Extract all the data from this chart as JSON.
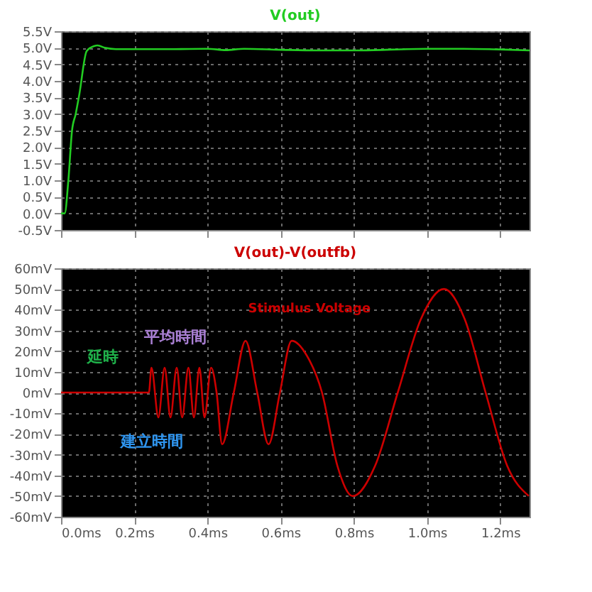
{
  "chart_data": [
    {
      "type": "line",
      "x": [
        0,
        0.01,
        0.02,
        0.03,
        0.04,
        0.05,
        0.07,
        0.09,
        0.1,
        0.12,
        0.15,
        0.2,
        0.3,
        0.4,
        0.45,
        0.5,
        0.6,
        0.7,
        0.8,
        1.0,
        1.1,
        1.2,
        1.28
      ],
      "series": [
        {
          "name": "V(out)",
          "color": "#22cc22",
          "values": [
            0,
            0,
            1.0,
            2.5,
            3.0,
            3.6,
            4.9,
            5.05,
            5.07,
            5.0,
            4.96,
            4.96,
            4.96,
            4.97,
            4.93,
            4.97,
            4.94,
            4.92,
            4.92,
            4.97,
            4.97,
            4.95,
            4.92
          ]
        }
      ],
      "xlim": [
        0,
        1.28
      ],
      "xticks": [
        {
          "value": 0,
          "label": null
        },
        {
          "value": 0.2,
          "label": null
        },
        {
          "value": 0.4,
          "label": null
        },
        {
          "value": 0.6,
          "label": null
        },
        {
          "value": 0.8,
          "label": null
        },
        {
          "value": 1.0,
          "label": null
        },
        {
          "value": 1.2,
          "label": null
        }
      ],
      "ylim": [
        -0.5,
        5.5
      ],
      "yticks": [
        {
          "value": -0.5,
          "label": "-0.5V"
        },
        {
          "value": 0,
          "label": "0.0V"
        },
        {
          "value": 0.5,
          "label": "0.5V"
        },
        {
          "value": 1,
          "label": "1.0V"
        },
        {
          "value": 1.5,
          "label": "1.5V"
        },
        {
          "value": 2,
          "label": "2.0V"
        },
        {
          "value": 2.5,
          "label": "2.5V"
        },
        {
          "value": 3,
          "label": "3.0V"
        },
        {
          "value": 3.5,
          "label": "3.5V"
        },
        {
          "value": 4,
          "label": "4.0V"
        },
        {
          "value": 4.5,
          "label": "4.5V"
        },
        {
          "value": 5,
          "label": "5.0V"
        },
        {
          "value": 5.5,
          "label": "5.5V"
        }
      ],
      "grid": true,
      "tick_labels": "y",
      "line_style": "solid",
      "marker": "none",
      "legend": false
    },
    {
      "type": "line",
      "x": [
        0,
        0.24,
        0.247,
        0.266,
        0.283,
        0.299,
        0.316,
        0.331,
        0.348,
        0.363,
        0.378,
        0.392,
        0.41,
        0.425,
        0.44,
        0.472,
        0.504,
        0.536,
        0.567,
        0.598,
        0.63,
        0.672,
        0.713,
        0.755,
        0.797,
        0.858,
        0.92,
        0.983,
        1.046,
        1.103,
        1.16,
        1.219,
        1.278
      ],
      "series": [
        {
          "name": "V(out)-V(outfb)",
          "color": "#cc0000",
          "values": [
            0,
            0,
            12,
            -12,
            12,
            -12,
            12,
            -12,
            12,
            -12,
            12,
            -12,
            12,
            0,
            -25,
            0,
            25,
            0,
            -25,
            0,
            25,
            17.7,
            0,
            -35.4,
            -50,
            -35.4,
            0,
            35.4,
            50,
            35.4,
            0,
            -35.4,
            -50
          ]
        }
      ],
      "xlim": [
        0,
        1.28
      ],
      "xticks": [
        {
          "value": 0,
          "label": "0.0ms"
        },
        {
          "value": 0.2,
          "label": "0.2ms"
        },
        {
          "value": 0.4,
          "label": "0.4ms"
        },
        {
          "value": 0.6,
          "label": "0.6ms"
        },
        {
          "value": 0.8,
          "label": "0.8ms"
        },
        {
          "value": 1.0,
          "label": "1.0ms"
        },
        {
          "value": 1.2,
          "label": "1.2ms"
        }
      ],
      "ylim": [
        -60,
        60
      ],
      "yticks": [
        {
          "value": -60,
          "label": "-60mV"
        },
        {
          "value": -50,
          "label": "-50mV"
        },
        {
          "value": -40,
          "label": "-40mV"
        },
        {
          "value": -30,
          "label": "-30mV"
        },
        {
          "value": -20,
          "label": "-20mV"
        },
        {
          "value": -10,
          "label": "-10mV"
        },
        {
          "value": 0,
          "label": "0mV"
        },
        {
          "value": 10,
          "label": "10mV"
        },
        {
          "value": 20,
          "label": "20mV"
        },
        {
          "value": 30,
          "label": "30mV"
        },
        {
          "value": 40,
          "label": "40mV"
        },
        {
          "value": 50,
          "label": "50mV"
        },
        {
          "value": 60,
          "label": "60mV"
        }
      ],
      "annotations": [
        "Stimulus Voltage",
        "延時",
        "平均時間",
        "建立時間"
      ],
      "grid": true,
      "line_style": "solid",
      "marker": "none",
      "legend": false
    }
  ]
}
